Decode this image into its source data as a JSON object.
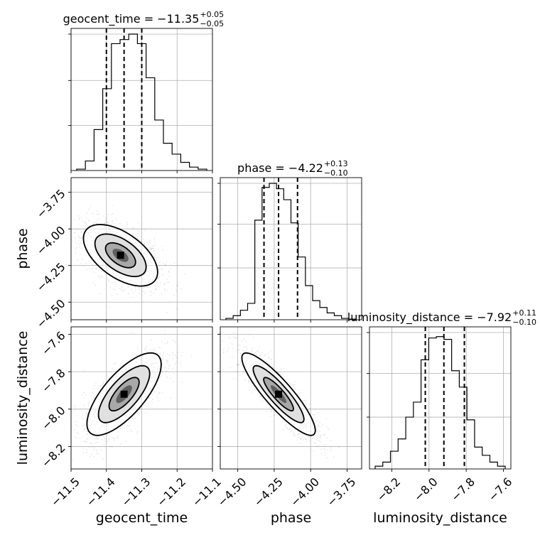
{
  "chart_data": {
    "type": "corner",
    "parameters": [
      {
        "name": "geocent_time",
        "label": "geocent_time",
        "range": [
          -11.5,
          -11.1
        ],
        "ticks": [
          -11.5,
          -11.4,
          -11.3,
          -11.2,
          -11.1
        ],
        "tick_labels": [
          "−11.5",
          "−11.4",
          "−11.3",
          "−11.2",
          "−11.1"
        ],
        "title_main": "geocent_time = −11.35",
        "title_plus": "+0.05",
        "title_minus": "−0.05",
        "median": -11.35,
        "q16": -11.4,
        "q84": -11.3,
        "hist_bins": [
          0.01,
          0.07,
          0.3,
          0.6,
          0.93,
          0.96,
          1.0,
          0.93,
          0.68,
          0.37,
          0.2,
          0.12,
          0.06,
          0.025,
          0.01
        ],
        "hist_ticks_y": [
          0.33,
          0.66,
          1.0
        ]
      },
      {
        "name": "phase",
        "label": "phase",
        "range": [
          -4.62,
          -3.65
        ],
        "ticks": [
          -4.5,
          -4.25,
          -4.0,
          -3.75
        ],
        "tick_labels": [
          "−4.50",
          "−4.25",
          "−4.00",
          "−3.75"
        ],
        "title_main": "phase = −4.22",
        "title_plus": "+0.13",
        "title_minus": "−0.10",
        "median": -4.22,
        "q16": -4.32,
        "q84": -4.09,
        "hist_bins": [
          0.01,
          0.03,
          0.07,
          0.12,
          0.73,
          0.97,
          1.0,
          0.96,
          0.88,
          0.71,
          0.46,
          0.25,
          0.14,
          0.09,
          0.05,
          0.03,
          0.01,
          0.005
        ],
        "hist_ticks_y": [
          0.38,
          0.7,
          1.0
        ]
      },
      {
        "name": "luminosity_distance",
        "label": "luminosity_distance",
        "range": [
          -8.32,
          -7.56
        ],
        "ticks": [
          -8.2,
          -8.0,
          -7.8,
          -7.6
        ],
        "tick_labels": [
          "−8.2",
          "−8.0",
          "−7.8",
          "−7.6"
        ],
        "title_main": "luminosity_distance = −7.92",
        "title_plus": "+0.11",
        "title_minus": "−0.10",
        "median": -7.92,
        "q16": -8.02,
        "q84": -7.81,
        "hist_bins": [
          0.02,
          0.05,
          0.13,
          0.22,
          0.38,
          0.49,
          0.8,
          0.96,
          0.97,
          0.95,
          0.72,
          0.6,
          0.36,
          0.16,
          0.1,
          0.05,
          0.02
        ],
        "hist_ticks_y": [
          0.38,
          0.7,
          1.0
        ]
      }
    ],
    "pairs": [
      {
        "x": "geocent_time",
        "y": "phase",
        "center": [
          -11.36,
          -4.18
        ],
        "sigma": [
          0.05,
          0.1
        ],
        "corr": -0.55
      },
      {
        "x": "geocent_time",
        "y": "luminosity_distance",
        "center": [
          -11.35,
          -7.92
        ],
        "sigma": [
          0.05,
          0.105
        ],
        "corr": 0.72
      },
      {
        "x": "phase",
        "y": "luminosity_distance",
        "center": [
          -4.22,
          -7.92
        ],
        "sigma": [
          0.12,
          0.105
        ],
        "corr": -0.88
      }
    ],
    "grid": true,
    "sample_color": "#000000",
    "contour_color": "#000000",
    "quantile_line_style": "dashed"
  }
}
